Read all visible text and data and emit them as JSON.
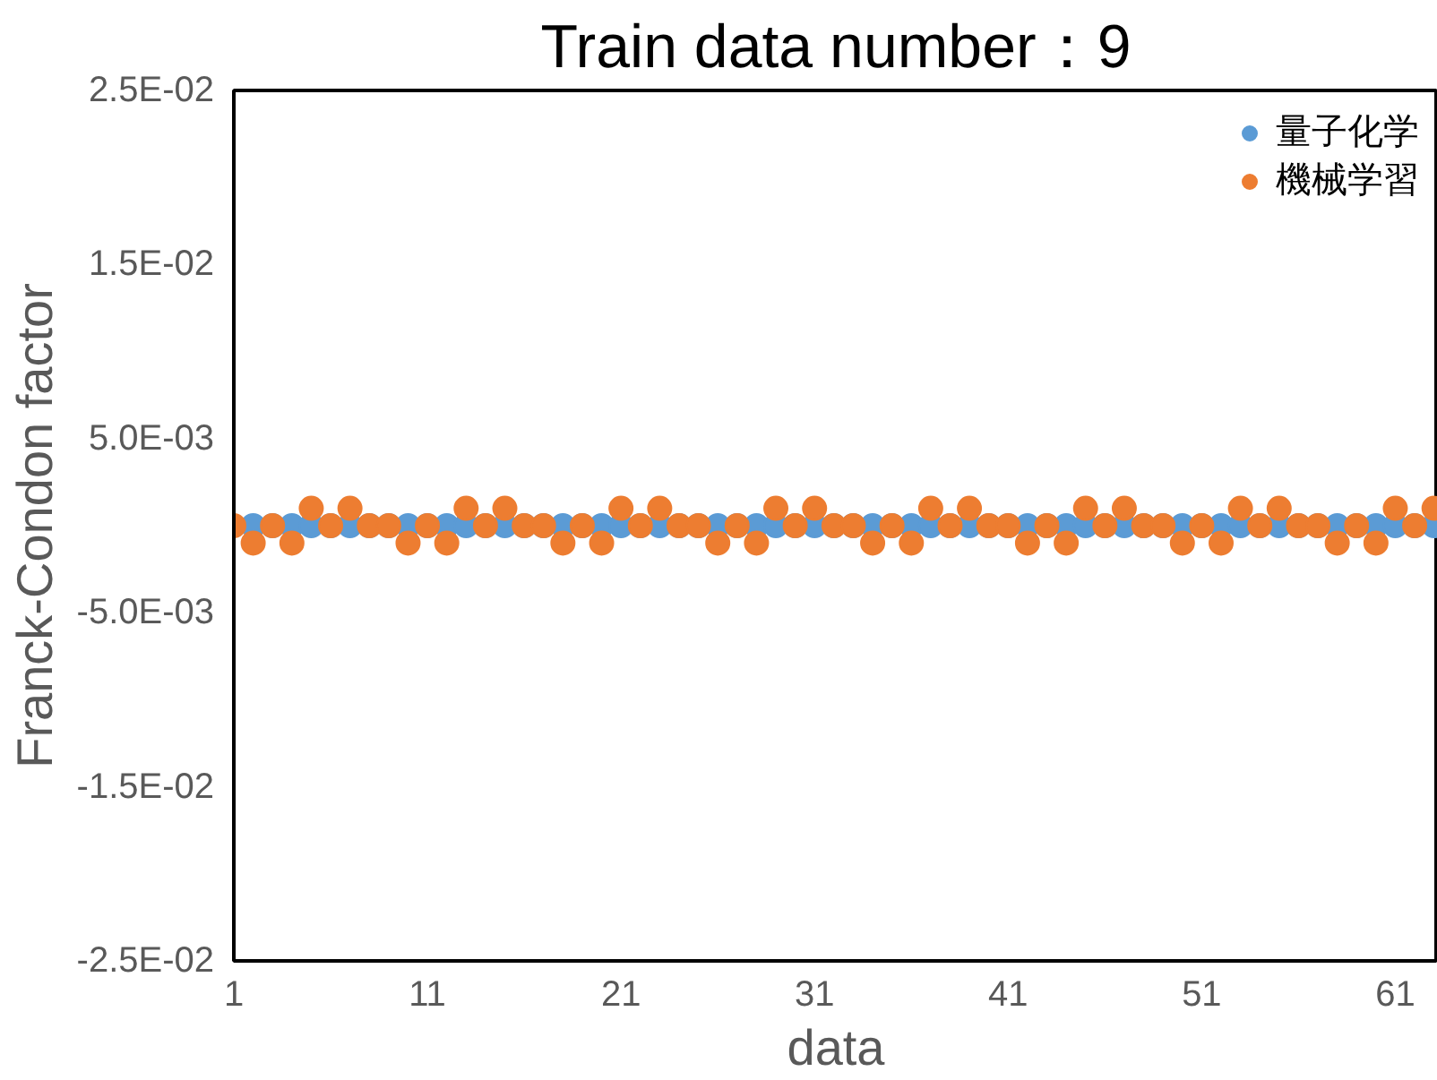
{
  "chart_data": {
    "type": "scatter",
    "title": "Train data number：9",
    "xlabel": "data",
    "ylabel": "Franck-Condon factor",
    "x": [
      1,
      2,
      3,
      4,
      5,
      6,
      7,
      8,
      9,
      10,
      11,
      12,
      13,
      14,
      15,
      16,
      17,
      18,
      19,
      20,
      21,
      22,
      23,
      24,
      25,
      26,
      27,
      28,
      29,
      30,
      31,
      32,
      33,
      34,
      35,
      36,
      37,
      38,
      39,
      40,
      41,
      42,
      43,
      44,
      45,
      46,
      47,
      48,
      49,
      50,
      51,
      52,
      53,
      54,
      55,
      56,
      57,
      58,
      59,
      60,
      61,
      62,
      63
    ],
    "series": [
      {
        "name": "量子化学",
        "color": "#5b9bd5",
        "values": [
          null,
          0,
          0,
          0,
          0,
          0,
          0,
          0,
          0,
          0,
          0,
          0,
          0,
          0,
          0,
          0,
          0,
          0,
          0,
          0,
          0,
          0,
          0,
          0,
          0,
          0,
          0,
          0,
          0,
          0,
          0,
          0,
          0,
          0,
          0,
          0,
          0,
          0,
          0,
          0,
          0,
          0,
          0,
          0,
          0,
          0,
          0,
          0,
          0,
          0,
          0,
          0,
          0,
          0,
          0,
          0,
          0,
          0,
          0,
          0,
          0,
          0,
          0
        ]
      },
      {
        "name": "機械学習",
        "color": "#ed7d31",
        "values": [
          0,
          -0.001,
          0,
          -0.001,
          0.001,
          0,
          0.001,
          0,
          0,
          -0.001,
          0,
          -0.001,
          0.001,
          0,
          0.001,
          0,
          0,
          -0.001,
          0,
          -0.001,
          0.001,
          0,
          0.001,
          0,
          0,
          -0.001,
          0,
          -0.001,
          0.001,
          0,
          0.001,
          0,
          0,
          -0.001,
          0,
          -0.001,
          0.001,
          0,
          0.001,
          0,
          0,
          -0.001,
          0,
          -0.001,
          0.001,
          0,
          0.001,
          0,
          0,
          -0.001,
          0,
          -0.001,
          0.001,
          0,
          0.001,
          0,
          0,
          -0.001,
          0,
          -0.001,
          0.001,
          0,
          0.001
        ]
      }
    ],
    "xlim": [
      1,
      63.2
    ],
    "xticks": [
      1,
      11,
      21,
      31,
      41,
      51,
      61
    ],
    "ylim": [
      -0.025,
      0.025
    ],
    "yticks": [
      {
        "value": -0.025,
        "label": "-2.5E-02"
      },
      {
        "value": -0.015,
        "label": "-1.5E-02"
      },
      {
        "value": -0.005,
        "label": "-5.0E-03"
      },
      {
        "value": 0.005,
        "label": "5.0E-03"
      },
      {
        "value": 0.015,
        "label": "1.5E-02"
      },
      {
        "value": 0.025,
        "label": "2.5E-02"
      }
    ],
    "marker": "circle",
    "legend": "top right",
    "grid": false
  }
}
